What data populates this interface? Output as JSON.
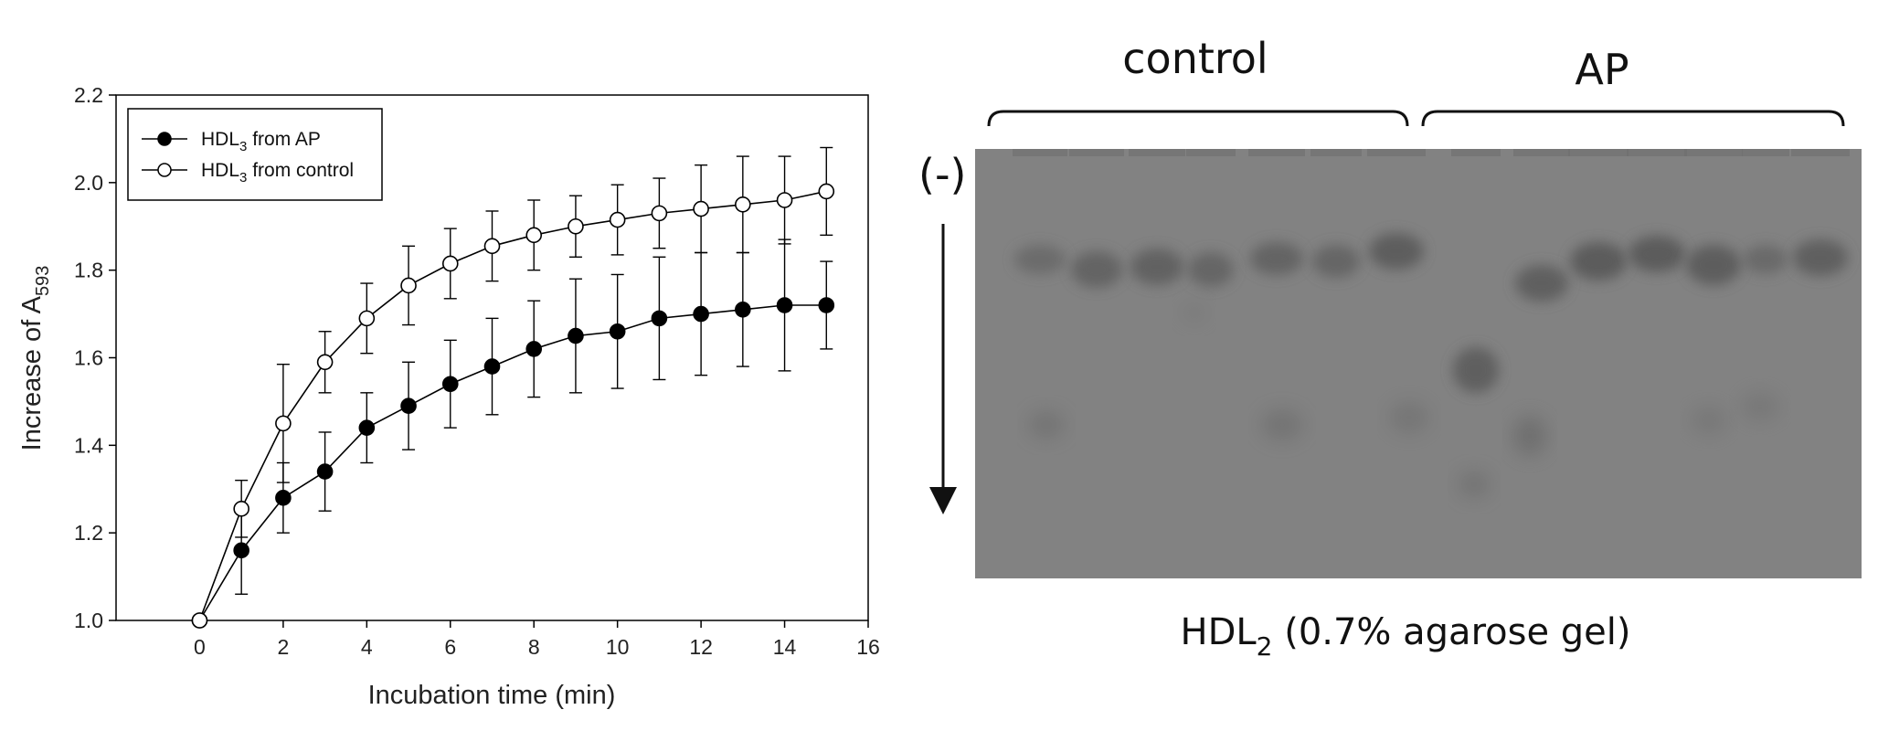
{
  "chart_data": {
    "type": "line",
    "xlabel": "Incubation time (min)",
    "ylabel": "Increase of A",
    "ylabel_sub": "593",
    "xlim": [
      -2,
      16
    ],
    "ylim": [
      1.0,
      2.2
    ],
    "xticks": [
      0,
      2,
      4,
      6,
      8,
      10,
      12,
      14,
      16
    ],
    "yticks": [
      "1.0",
      "1.2",
      "1.4",
      "1.6",
      "1.8",
      "2.0",
      "2.2"
    ],
    "grid": false,
    "legend_position": "top-left",
    "x": [
      0,
      1,
      2,
      3,
      4,
      5,
      6,
      7,
      8,
      9,
      10,
      11,
      12,
      13,
      14,
      15
    ],
    "series": [
      {
        "name": "HDL",
        "name_sub": "3",
        "name_rest": " from AP",
        "marker": "filled-circle",
        "values": [
          1.0,
          1.16,
          1.28,
          1.34,
          1.44,
          1.49,
          1.54,
          1.58,
          1.62,
          1.65,
          1.66,
          1.69,
          1.7,
          1.71,
          1.72,
          1.72
        ],
        "errors": [
          0,
          0.1,
          0.08,
          0.09,
          0.08,
          0.1,
          0.1,
          0.11,
          0.11,
          0.13,
          0.13,
          0.14,
          0.14,
          0.13,
          0.15,
          0.1
        ]
      },
      {
        "name": "HDL",
        "name_sub": "3",
        "name_rest": " from control",
        "marker": "open-circle",
        "values": [
          1.0,
          1.255,
          1.45,
          1.59,
          1.69,
          1.765,
          1.815,
          1.855,
          1.88,
          1.9,
          1.915,
          1.93,
          1.94,
          1.95,
          1.96,
          1.98
        ],
        "errors": [
          0,
          0.065,
          0.135,
          0.07,
          0.08,
          0.09,
          0.08,
          0.08,
          0.08,
          0.07,
          0.08,
          0.08,
          0.1,
          0.11,
          0.1,
          0.1
        ]
      }
    ]
  },
  "gel": {
    "group_labels": [
      "control",
      "AP"
    ],
    "direction_label": "(-)",
    "caption_main": "HDL",
    "caption_sub": "2",
    "caption_rest": " (0.7% agarose gel)",
    "gel_color": "#828282",
    "band_color": "#5a5a5a"
  }
}
